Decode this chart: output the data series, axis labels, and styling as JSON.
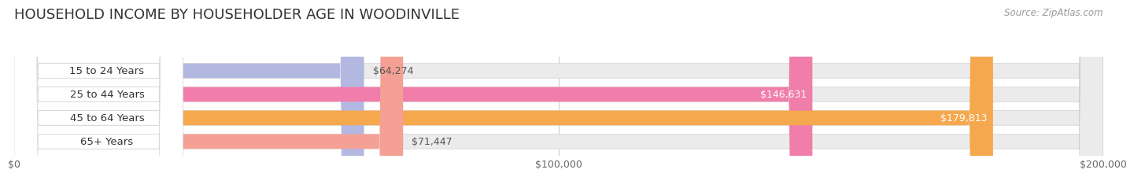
{
  "title": "HOUSEHOLD INCOME BY HOUSEHOLDER AGE IN WOODINVILLE",
  "source": "Source: ZipAtlas.com",
  "categories": [
    "15 to 24 Years",
    "25 to 44 Years",
    "45 to 64 Years",
    "65+ Years"
  ],
  "values": [
    64274,
    146631,
    179813,
    71447
  ],
  "bar_colors": [
    "#b3b8e0",
    "#f07daa",
    "#f5a84e",
    "#f5a095"
  ],
  "bar_bg_colors": [
    "#ebebeb",
    "#ebebeb",
    "#ebebeb",
    "#ebebeb"
  ],
  "label_colors": [
    "#444444",
    "#ffffff",
    "#ffffff",
    "#555555"
  ],
  "background_color": "#ffffff",
  "xlim": [
    0,
    200000
  ],
  "xticks": [
    0,
    100000,
    200000
  ],
  "xtick_labels": [
    "$0",
    "$100,000",
    "$200,000"
  ],
  "title_fontsize": 13,
  "source_fontsize": 8.5,
  "tick_fontsize": 9,
  "bar_label_fontsize": 9,
  "category_fontsize": 9.5,
  "bar_height": 0.62,
  "value_labels": [
    "$64,274",
    "$146,631",
    "$179,813",
    "$71,447"
  ],
  "grid_color": "#cccccc",
  "label_pill_color": "#ffffff",
  "label_pill_edge": "#dddddd"
}
